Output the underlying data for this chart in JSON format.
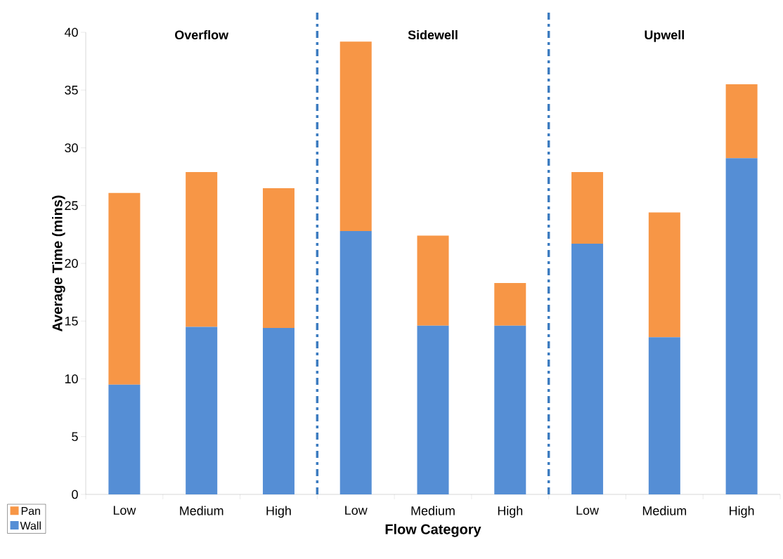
{
  "chart_data": {
    "type": "bar",
    "stacked": true,
    "categories": [
      "Low",
      "Medium",
      "High",
      "Low",
      "Medium",
      "High",
      "Low",
      "Medium",
      "High"
    ],
    "series": [
      {
        "name": "Wall",
        "color": "#558ed5",
        "values": [
          9.5,
          14.5,
          14.4,
          22.8,
          14.6,
          14.6,
          21.7,
          13.6,
          29.1
        ]
      },
      {
        "name": "Pan",
        "color": "#f79646",
        "values": [
          16.6,
          13.4,
          12.1,
          16.4,
          7.8,
          3.7,
          6.2,
          10.8,
          6.4
        ]
      }
    ],
    "xlabel": "Flow Category",
    "ylabel": "Average Time (mins)",
    "ylim": [
      0,
      40
    ],
    "yticks": [
      0,
      5,
      10,
      15,
      20,
      25,
      30,
      35,
      40
    ],
    "annotations": [
      "Overflow",
      "Sidewell",
      "Upwell"
    ],
    "legend": "bottom left",
    "grid": false
  }
}
